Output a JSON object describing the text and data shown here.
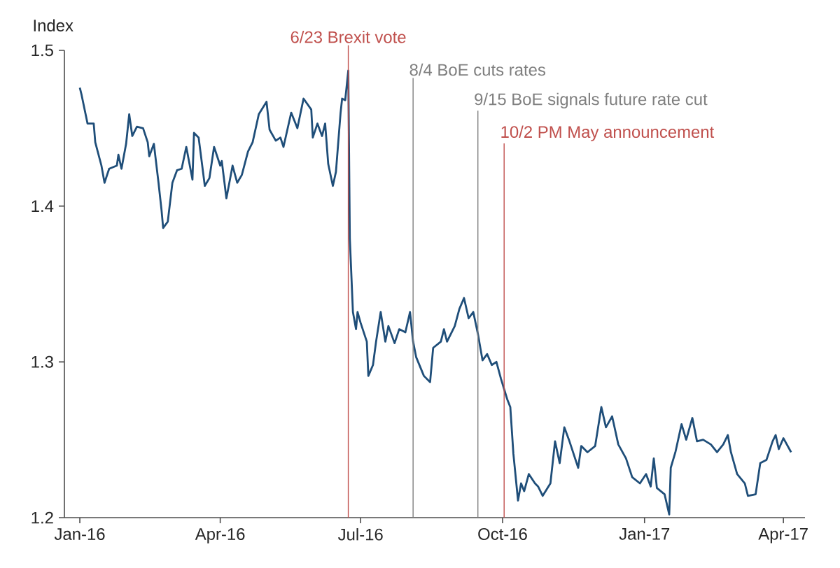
{
  "chart_data": {
    "type": "line",
    "ylabel": "Index",
    "x": [
      "2016-01-01",
      "2016-01-02",
      "2016-01-06",
      "2016-01-10",
      "2016-01-11",
      "2016-01-15",
      "2016-01-17",
      "2016-01-20",
      "2016-01-25",
      "2016-01-26",
      "2016-01-28",
      "2016-01-31",
      "2016-02-02",
      "2016-02-04",
      "2016-02-07",
      "2016-02-11",
      "2016-02-14",
      "2016-02-15",
      "2016-02-18",
      "2016-02-21",
      "2016-02-23",
      "2016-02-24",
      "2016-02-27",
      "2016-03-01",
      "2016-03-04",
      "2016-03-07",
      "2016-03-10",
      "2016-03-14",
      "2016-03-15",
      "2016-03-18",
      "2016-03-22",
      "2016-03-25",
      "2016-03-28",
      "2016-04-01",
      "2016-04-02",
      "2016-04-05",
      "2016-04-09",
      "2016-04-12",
      "2016-04-15",
      "2016-04-19",
      "2016-04-22",
      "2016-04-26",
      "2016-05-01",
      "2016-05-03",
      "2016-05-07",
      "2016-05-10",
      "2016-05-12",
      "2016-05-17",
      "2016-05-21",
      "2016-05-25",
      "2016-05-30",
      "2016-05-31",
      "2016-06-03",
      "2016-06-06",
      "2016-06-08",
      "2016-06-10",
      "2016-06-13",
      "2016-06-15",
      "2016-06-18",
      "2016-06-19",
      "2016-06-21",
      "2016-06-23",
      "2016-06-24",
      "2016-06-26",
      "2016-06-28",
      "2016-06-29",
      "2016-07-01",
      "2016-07-05",
      "2016-07-06",
      "2016-07-09",
      "2016-07-11",
      "2016-07-14",
      "2016-07-17",
      "2016-07-19",
      "2016-07-23",
      "2016-07-26",
      "2016-07-30",
      "2016-08-02",
      "2016-08-04",
      "2016-08-06",
      "2016-08-11",
      "2016-08-15",
      "2016-08-17",
      "2016-08-22",
      "2016-08-24",
      "2016-08-26",
      "2016-08-31",
      "2016-09-03",
      "2016-09-06",
      "2016-09-09",
      "2016-09-12",
      "2016-09-15",
      "2016-09-18",
      "2016-09-21",
      "2016-09-24",
      "2016-09-27",
      "2016-09-30",
      "2016-10-04",
      "2016-10-06",
      "2016-10-08",
      "2016-10-11",
      "2016-10-13",
      "2016-10-15",
      "2016-10-18",
      "2016-10-22",
      "2016-10-24",
      "2016-10-27",
      "2016-11-01",
      "2016-11-04",
      "2016-11-07",
      "2016-11-10",
      "2016-11-13",
      "2016-11-16",
      "2016-11-19",
      "2016-11-21",
      "2016-11-25",
      "2016-11-30",
      "2016-12-04",
      "2016-12-07",
      "2016-12-11",
      "2016-12-15",
      "2016-12-20",
      "2016-12-24",
      "2016-12-29",
      "2017-01-02",
      "2017-01-05",
      "2017-01-07",
      "2017-01-09",
      "2017-01-14",
      "2017-01-17",
      "2017-01-18",
      "2017-01-21",
      "2017-01-25",
      "2017-01-28",
      "2017-02-01",
      "2017-02-04",
      "2017-02-08",
      "2017-02-13",
      "2017-02-17",
      "2017-02-21",
      "2017-02-24",
      "2017-02-26",
      "2017-03-02",
      "2017-03-07",
      "2017-03-09",
      "2017-03-14",
      "2017-03-17",
      "2017-03-21",
      "2017-03-25",
      "2017-03-27",
      "2017-03-29",
      "2017-04-01",
      "2017-04-06"
    ],
    "series": [
      {
        "color": "#1f4e79",
        "values": [
          1.476,
          1.472,
          1.453,
          1.453,
          1.441,
          1.426,
          1.415,
          1.424,
          1.426,
          1.433,
          1.424,
          1.44,
          1.459,
          1.445,
          1.451,
          1.45,
          1.441,
          1.432,
          1.44,
          1.415,
          1.397,
          1.386,
          1.39,
          1.415,
          1.423,
          1.424,
          1.438,
          1.417,
          1.447,
          1.444,
          1.413,
          1.418,
          1.438,
          1.426,
          1.429,
          1.405,
          1.426,
          1.415,
          1.42,
          1.435,
          1.441,
          1.459,
          1.467,
          1.449,
          1.442,
          1.444,
          1.438,
          1.46,
          1.45,
          1.469,
          1.462,
          1.444,
          1.453,
          1.445,
          1.453,
          1.427,
          1.413,
          1.422,
          1.46,
          1.469,
          1.468,
          1.487,
          1.379,
          1.332,
          1.321,
          1.332,
          1.325,
          1.313,
          1.291,
          1.298,
          1.313,
          1.332,
          1.313,
          1.323,
          1.312,
          1.321,
          1.319,
          1.332,
          1.313,
          1.303,
          1.291,
          1.287,
          1.309,
          1.313,
          1.321,
          1.313,
          1.323,
          1.334,
          1.341,
          1.328,
          1.332,
          1.318,
          1.301,
          1.305,
          1.298,
          1.3,
          1.289,
          1.276,
          1.271,
          1.241,
          1.211,
          1.222,
          1.217,
          1.228,
          1.222,
          1.22,
          1.214,
          1.222,
          1.249,
          1.235,
          1.258,
          1.25,
          1.241,
          1.232,
          1.246,
          1.242,
          1.246,
          1.271,
          1.258,
          1.265,
          1.247,
          1.238,
          1.226,
          1.222,
          1.228,
          1.22,
          1.238,
          1.219,
          1.215,
          1.202,
          1.232,
          1.242,
          1.26,
          1.25,
          1.264,
          1.249,
          1.25,
          1.247,
          1.242,
          1.247,
          1.253,
          1.242,
          1.228,
          1.222,
          1.214,
          1.215,
          1.235,
          1.237,
          1.249,
          1.253,
          1.244,
          1.251,
          1.242
        ]
      }
    ],
    "xlim": [
      "2015-12-22",
      "2017-04-15"
    ],
    "xticks": [
      {
        "value": "2016-01-01",
        "label": "Jan-16"
      },
      {
        "value": "2016-04-01",
        "label": "Apr-16"
      },
      {
        "value": "2016-07-01",
        "label": "Jul-16"
      },
      {
        "value": "2016-10-01",
        "label": "Oct-16"
      },
      {
        "value": "2017-01-01",
        "label": "Jan-17"
      },
      {
        "value": "2017-04-01",
        "label": "Apr-17"
      }
    ],
    "ylim": [
      1.2,
      1.5
    ],
    "yticks": [
      1.2,
      1.3,
      1.4,
      1.5
    ],
    "ref_lines": [
      {
        "axis": "x",
        "value": "2016-06-23",
        "label": "6/23 Brexit vote",
        "color": "#c0504d"
      },
      {
        "axis": "x",
        "value": "2016-08-04",
        "label": "8/4 BoE cuts rates",
        "color": "#7f7f7f"
      },
      {
        "axis": "x",
        "value": "2016-09-15",
        "label": "9/15 BoE signals future rate cut",
        "color": "#7f7f7f"
      },
      {
        "axis": "x",
        "value": "2016-10-02",
        "label": "10/2 PM May announcement",
        "color": "#c0504d"
      }
    ]
  }
}
